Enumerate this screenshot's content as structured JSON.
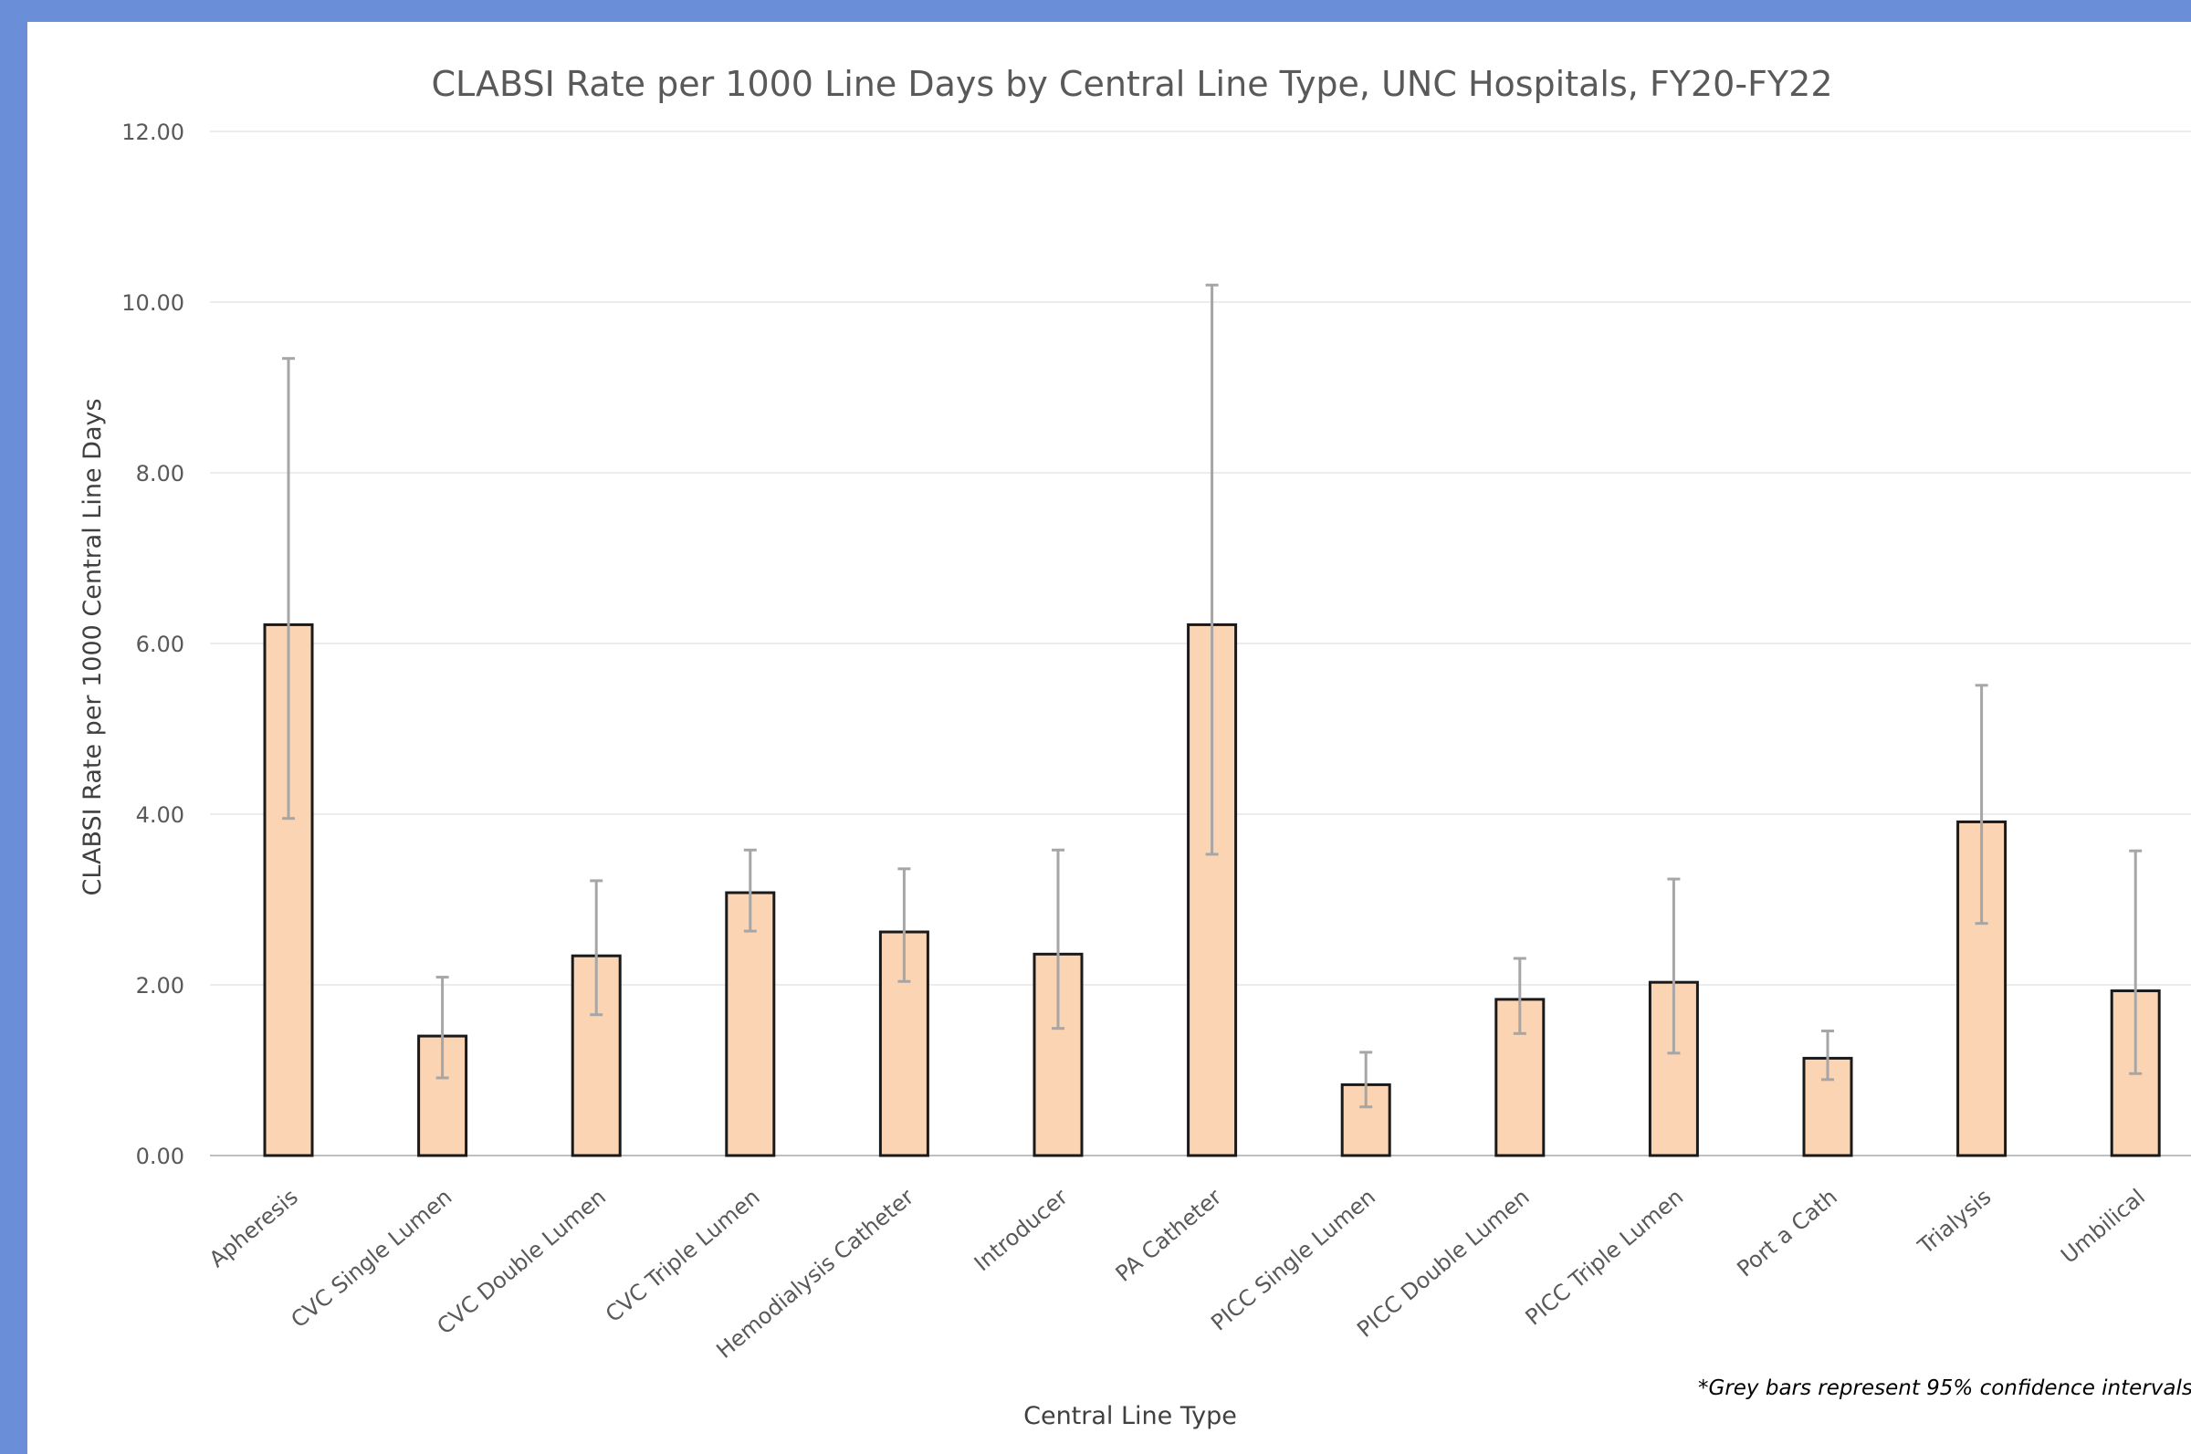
{
  "chart_data": {
    "type": "bar",
    "title": "CLABSI Rate per 1000 Line Days by Central Line Type, UNC Hospitals, FY20-FY22",
    "xlabel": "Central Line Type",
    "ylabel": "CLABSI Rate per 1000 Central Line Days",
    "ylim": [
      0,
      12
    ],
    "yticks": [
      "0.00",
      "2.00",
      "4.00",
      "6.00",
      "8.00",
      "10.00",
      "12.00"
    ],
    "grid": true,
    "categories": [
      "Apheresis",
      "CVC Single Lumen",
      "CVC Double Lumen",
      "CVC Triple Lumen",
      "Hemodialysis Catheter",
      "Introducer",
      "PA Catheter",
      "PICC Single Lumen",
      "PICC Double Lumen",
      "PICC Triple Lumen",
      "Port a Cath",
      "Trialysis",
      "Umbilical"
    ],
    "values": [
      6.22,
      1.4,
      2.34,
      3.08,
      2.62,
      2.36,
      6.22,
      0.83,
      1.83,
      2.03,
      1.14,
      3.91,
      1.93
    ],
    "ci_lower": [
      3.95,
      0.91,
      1.65,
      2.63,
      2.04,
      1.49,
      3.53,
      0.57,
      1.43,
      1.2,
      0.89,
      2.72,
      0.96
    ],
    "ci_upper": [
      9.34,
      2.09,
      3.22,
      3.58,
      3.36,
      3.58,
      10.2,
      1.21,
      2.31,
      3.24,
      1.46,
      5.51,
      3.57
    ],
    "annotation": "*Grey bars represent 95% confidence intervals",
    "colors": {
      "bar_fill": "#fbd4b4",
      "bar_stroke": "#1a1a1a",
      "error_bar": "#a6a6a6",
      "grid": "#ececec",
      "background_frame": "#6a8ed8"
    }
  }
}
